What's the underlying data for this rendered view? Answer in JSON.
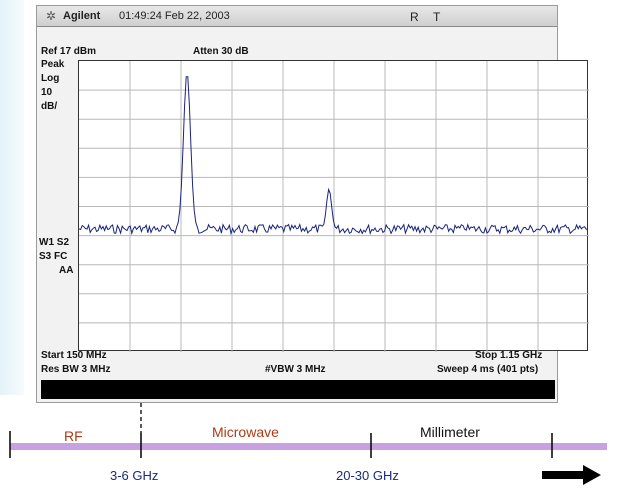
{
  "analyzer": {
    "brand": "Agilent",
    "timestamp": "01:49:24  Feb 22, 2003",
    "indicators": [
      "R",
      "T"
    ],
    "ref_level": "Ref 17 dBm",
    "attenuation": "Atten 30 dB",
    "side_labels": [
      "Peak",
      "Log",
      "10",
      "dB/"
    ],
    "status_labels": [
      "W1  S2",
      "S3  FC",
      "AA"
    ],
    "start_freq": "Start 150 MHz",
    "stop_freq": "Stop 1.15 GHz",
    "res_bw": "Res BW 3 MHz",
    "vbw": "#VBW 3 MHz",
    "sweep": "Sweep 4 ms (401 pts)"
  },
  "spectrum": {
    "peaks": [
      {
        "label": "peak-1",
        "level": 0.96
      },
      {
        "label": "peak-2",
        "level": 0.56
      },
      {
        "label": "peak-3",
        "level": 0.36
      }
    ]
  },
  "bands": {
    "rf": "RF",
    "microwave": "Microwave",
    "millimeter": "Millimeter",
    "ticks": [
      "3-6 GHz",
      "20-30 GHz"
    ],
    "colors": {
      "band_bar": "#c8a2e0",
      "rf": "#b03a14",
      "microwave": "#b03a14",
      "millimeter": "#111111",
      "tick_labels": "#1a2a7a"
    }
  }
}
